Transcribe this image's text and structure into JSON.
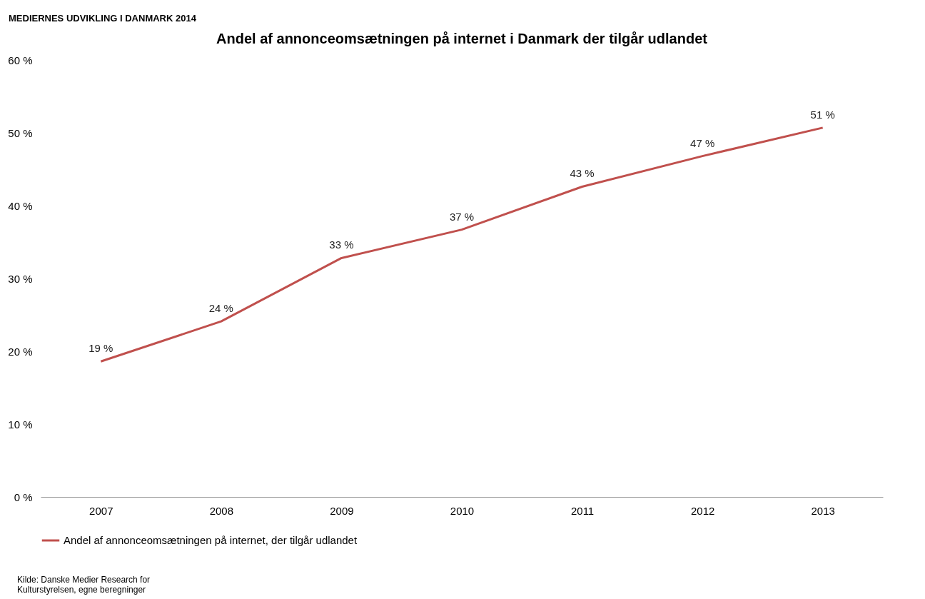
{
  "chart_data": {
    "type": "line",
    "title": "Andel af annonceomsætningen på internet i Danmark der tilgår udlandet",
    "categories": [
      "2007",
      "2008",
      "2009",
      "2010",
      "2011",
      "2012",
      "2013"
    ],
    "series": [
      {
        "name": "Andel af annonceomsætningen på internet, der tilgår udlandet",
        "color": "#c0504d",
        "values": [
          18.6,
          24.1,
          32.8,
          36.7,
          42.6,
          46.8,
          50.7
        ],
        "value_labels": [
          "19 %",
          "24 %",
          "33 %",
          "37 %",
          "43 %",
          "47 %",
          "51 %"
        ]
      }
    ],
    "ylim": [
      0,
      60
    ],
    "yticks": [
      {
        "value": 0,
        "label": "0 %"
      },
      {
        "value": 10,
        "label": "10 %"
      },
      {
        "value": 20,
        "label": "20 %"
      },
      {
        "value": 30,
        "label": "30 %"
      },
      {
        "value": 40,
        "label": "40 %"
      },
      {
        "value": 50,
        "label": "50 %"
      },
      {
        "value": 60,
        "label": "60 %"
      }
    ],
    "grid": false,
    "legend": "bottom",
    "marker": "none",
    "line_style": "solid",
    "annotations": [
      "MEDIERNES UDVIKLING I DANMARK 2014",
      "Kilde: Danske Medier Research for Kulturstyrelsen, egne beregninger"
    ]
  }
}
